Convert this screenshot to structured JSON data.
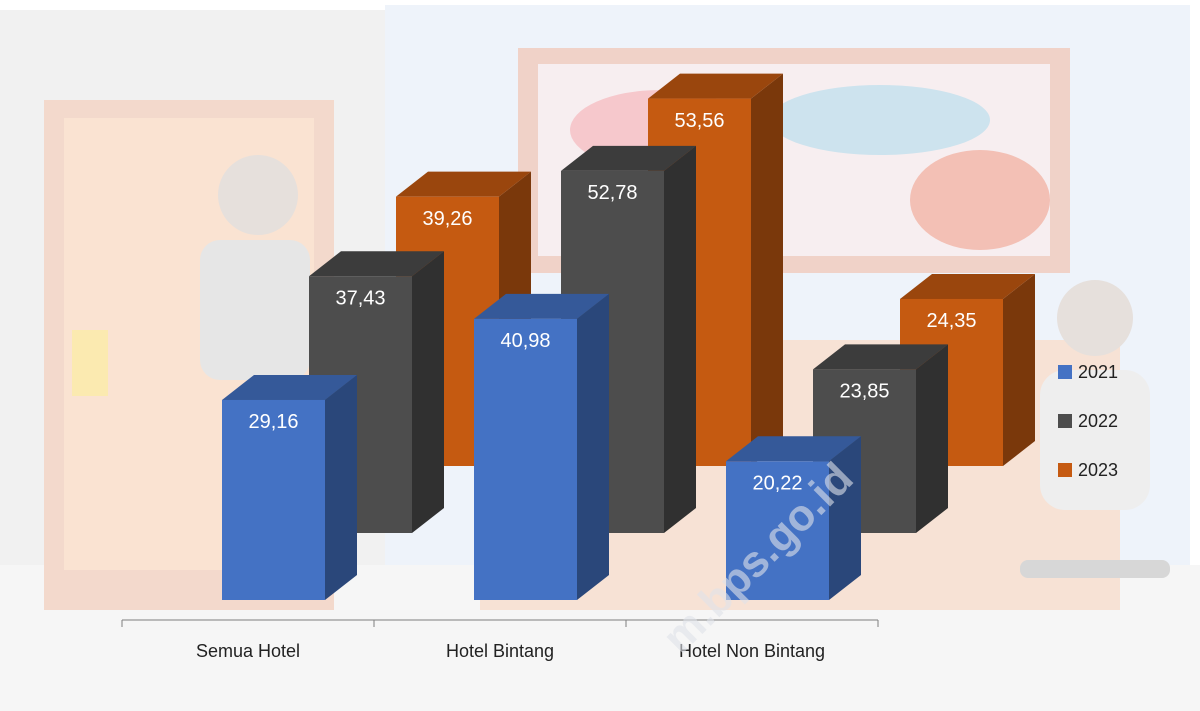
{
  "chart_data": {
    "type": "bar3d",
    "categories": [
      "Semua Hotel",
      "Hotel Bintang",
      "Hotel Non Bintang"
    ],
    "series": [
      {
        "name": "2021",
        "color": "#4472c4",
        "values": [
          29.16,
          40.98,
          20.22
        ],
        "value_labels": [
          "29,16",
          "40,98",
          "20,22"
        ]
      },
      {
        "name": "2022",
        "color": "#4d4d4d",
        "values": [
          37.43,
          52.78,
          23.85
        ],
        "value_labels": [
          "37,43",
          "52,78",
          "23,85"
        ]
      },
      {
        "name": "2023",
        "color": "#c55a11",
        "values": [
          39.26,
          53.56,
          24.35
        ],
        "value_labels": [
          "39,26",
          "53,56",
          "24,35"
        ]
      }
    ],
    "watermark": "m.bps.go.id",
    "legend": "right"
  }
}
